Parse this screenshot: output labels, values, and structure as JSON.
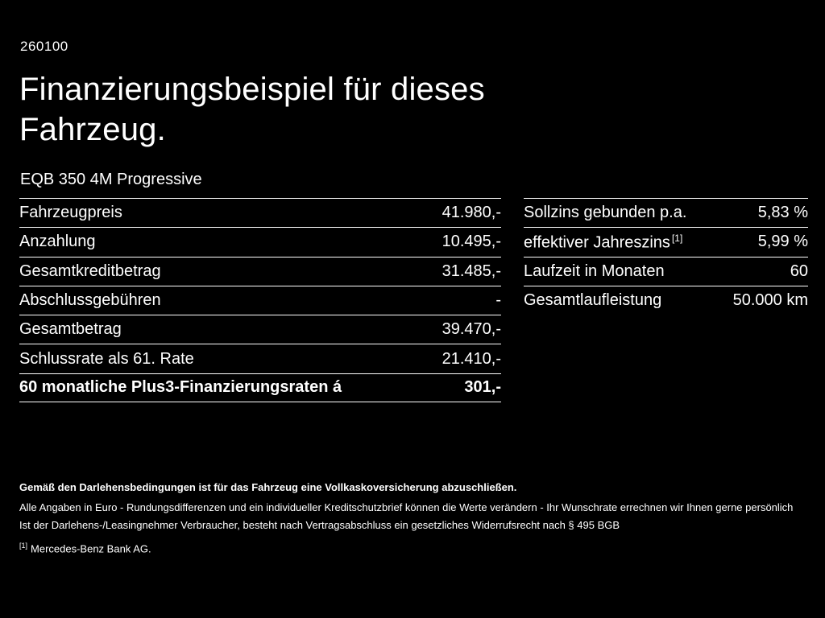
{
  "page": {
    "code": "260100",
    "title_line1": "Finanzierungsbeispiel für dieses",
    "title_line2": "Fahrzeug.",
    "subtitle": "EQB 350 4M Progressive"
  },
  "left_table": {
    "rows": [
      {
        "label": "Fahrzeugpreis",
        "value": "41.980,-"
      },
      {
        "label": "Anzahlung",
        "value": "10.495,-"
      },
      {
        "label": "Gesamtkreditbetrag",
        "value": "31.485,-"
      },
      {
        "label": "Abschlussgebühren",
        "value": "-"
      },
      {
        "label": "Gesamtbetrag",
        "value": "39.470,-"
      },
      {
        "label": "Schlussrate als 61. Rate",
        "value": "21.410,-"
      },
      {
        "label": "60 monatliche Plus3-Finanzierungsraten á",
        "value": "301,-"
      }
    ]
  },
  "right_table": {
    "rows": [
      {
        "label": "Sollzins gebunden p.a.",
        "value": "5,83 %"
      },
      {
        "label": "effektiver Jahreszins",
        "sup": "[1]",
        "value": "5,99 %"
      },
      {
        "label": "Laufzeit in Monaten",
        "value": "60"
      },
      {
        "label": "Gesamtlaufleistung",
        "value": "50.000 km"
      }
    ]
  },
  "footer": {
    "line_bold": "Gemäß den Darlehensbedingungen ist für das Fahrzeug eine Vollkaskoversicherung abzuschließen.",
    "line1": "Alle Angaben in Euro - Rundungsdifferenzen und ein individueller Kreditschutzbrief können die Werte verändern - Ihr Wunschrate errechnen wir Ihnen gerne persönlich",
    "line2": "Ist der Darlehens-/Leasingnehmer Verbraucher, besteht nach Vertragsabschluss ein gesetzliches Widerrufsrecht nach § 495 BGB",
    "footnote_marker": "[1]",
    "footnote_text": "Mercedes-Benz Bank AG."
  },
  "colors": {
    "background": "#000000",
    "text": "#ffffff"
  }
}
